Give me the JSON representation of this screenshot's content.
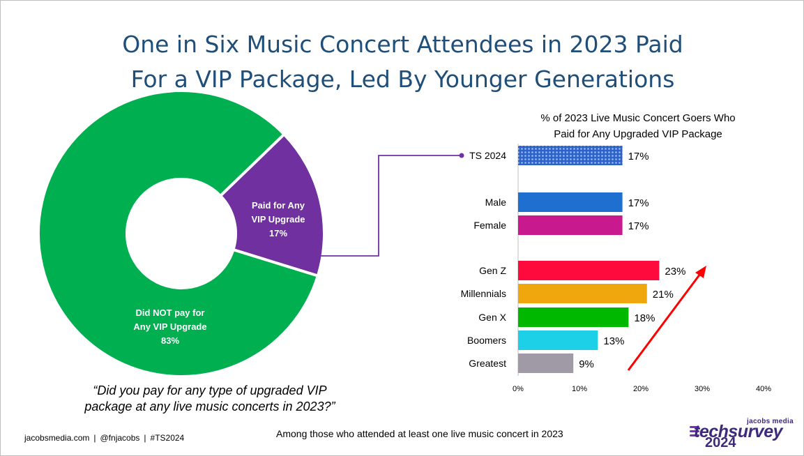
{
  "title": {
    "line1": "One in Six Music Concert Attendees in 2023 Paid",
    "line2": "For a VIP Package, Led By Younger Generations"
  },
  "colors": {
    "title": "#1f4e79",
    "donut_no": "#00b050",
    "donut_yes": "#7030a0",
    "connector": "#7030a0",
    "arrow": "#ff0000"
  },
  "donut": {
    "slices": [
      {
        "label_lines": [
          "Paid for Any",
          "VIP Upgrade",
          "17%"
        ],
        "value": 17,
        "color": "#7030a0"
      },
      {
        "label_lines": [
          "Did NOT pay for",
          "Any VIP Upgrade",
          "83%"
        ],
        "value": 83,
        "color": "#00b050"
      }
    ]
  },
  "question": "“Did you pay for any type of upgraded VIP package at any live music concerts in 2023?”",
  "chart_data": [
    {
      "type": "pie",
      "variant": "donut",
      "categories": [
        "Paid for Any VIP Upgrade",
        "Did NOT pay for Any VIP Upgrade"
      ],
      "values": [
        17,
        83
      ],
      "unit": "%"
    },
    {
      "type": "bar",
      "orientation": "horizontal",
      "title": "% of 2023 Live Music Concert Goers Who Paid for Any Upgraded VIP Package",
      "title_lines": [
        "% of 2023 Live Music Concert Goers Who",
        "Paid for Any Upgraded VIP Package"
      ],
      "categories": [
        "TS 2024",
        "Male",
        "Female",
        "Gen Z",
        "Millennials",
        "Gen X",
        "Boomers",
        "Greatest"
      ],
      "values": [
        17,
        17,
        17,
        23,
        21,
        18,
        13,
        9
      ],
      "value_labels": [
        "17%",
        "17%",
        "17%",
        "23%",
        "21%",
        "18%",
        "13%",
        "9%"
      ],
      "colors": [
        "#4472c4",
        "#1f6fd1",
        "#c9198f",
        "#ff0a3c",
        "#f0a70e",
        "#00b800",
        "#1ecfe8",
        "#a09aa6"
      ],
      "patterned": [
        true,
        false,
        false,
        false,
        false,
        false,
        false,
        false
      ],
      "xlim": [
        0,
        40
      ],
      "xticks": [
        "0%",
        "10%",
        "20%",
        "30%",
        "40%"
      ],
      "grid": false,
      "legend": "none"
    }
  ],
  "footer": {
    "site": "jacobsmedia.com",
    "separator": "|",
    "handle": "@fnjacobs",
    "hashtag": "#TS2024",
    "note": "Among those who attended at least one live music concert in 2023"
  },
  "logo": {
    "small": "jacobs media",
    "big": "techsurvey",
    "year": "2024"
  }
}
